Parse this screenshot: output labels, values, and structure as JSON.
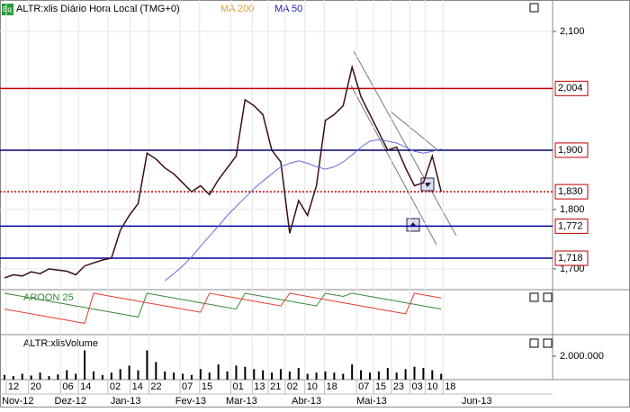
{
  "chart_data": {
    "type": "line",
    "title": "ALTR:xlis Diário Hora Local (TMG+0)",
    "indicator_labels": [
      "MA 200",
      "MA 50"
    ],
    "xlim": [
      -0.5,
      61.5
    ],
    "xticks": [
      {
        "value": 0.2,
        "label": "12"
      },
      {
        "value": 2.7,
        "label": "20"
      },
      {
        "value": 6.3,
        "label": "06"
      },
      {
        "value": 8.3,
        "label": "14"
      },
      {
        "value": 11.6,
        "label": "02"
      },
      {
        "value": 14.1,
        "label": "14"
      },
      {
        "value": 16.2,
        "label": "22"
      },
      {
        "value": 19.7,
        "label": "07"
      },
      {
        "value": 21.9,
        "label": "15"
      },
      {
        "value": 25.4,
        "label": "01"
      },
      {
        "value": 27.8,
        "label": "13"
      },
      {
        "value": 29.6,
        "label": "21"
      },
      {
        "value": 31.5,
        "label": "02"
      },
      {
        "value": 33.7,
        "label": "10"
      },
      {
        "value": 35.9,
        "label": "18"
      },
      {
        "value": 39.5,
        "label": "07"
      },
      {
        "value": 41.4,
        "label": "15"
      },
      {
        "value": 43.4,
        "label": "23"
      },
      {
        "value": 45.5,
        "label": "03"
      },
      {
        "value": 47.2,
        "label": "10"
      },
      {
        "value": 49.2,
        "label": "18"
      }
    ],
    "month_ticks": [
      {
        "value": 1.5,
        "label": "Nov-12"
      },
      {
        "value": 7.4,
        "label": "Dez-12"
      },
      {
        "value": 13.6,
        "label": "Jan-13"
      },
      {
        "value": 20.9,
        "label": "Fev-13"
      },
      {
        "value": 26.6,
        "label": "Mar-13"
      },
      {
        "value": 33.9,
        "label": "Abr-13"
      },
      {
        "value": 41.2,
        "label": "Mai-13"
      },
      {
        "value": 53.0,
        "label": "Jun-13"
      }
    ],
    "ylim": [
      1665,
      2153
    ],
    "yticks": [
      {
        "value": 2100,
        "label": "2,100"
      },
      {
        "value": 1800,
        "label": "1,800"
      },
      {
        "value": 1700,
        "label": "1,700"
      }
    ],
    "series": [
      {
        "name": "ALTR:xlis",
        "color": "#3a1010",
        "values": [
          1685,
          1690,
          1688,
          1695,
          1692,
          1700,
          1698,
          1696,
          1690,
          1705,
          1710,
          1715,
          1718,
          1765,
          1790,
          1810,
          1895,
          1885,
          1870,
          1860,
          1845,
          1830,
          1840,
          1825,
          1850,
          1870,
          1890,
          1985,
          1975,
          1960,
          1900,
          1880,
          1760,
          1815,
          1790,
          1840,
          1950,
          1960,
          1975,
          2040,
          1990,
          1960,
          1930,
          1900,
          1905,
          1870,
          1840,
          1845,
          1890,
          1830
        ]
      },
      {
        "name": "MA 50",
        "color": "#6a6ae0",
        "values": [
          null,
          null,
          null,
          null,
          null,
          null,
          null,
          null,
          null,
          null,
          null,
          null,
          null,
          null,
          null,
          null,
          null,
          null,
          1680,
          1692,
          1705,
          1720,
          1738,
          1755,
          1772,
          1790,
          1805,
          1820,
          1835,
          1848,
          1860,
          1872,
          1878,
          1882,
          1878,
          1872,
          1868,
          1872,
          1880,
          1892,
          1905,
          1915,
          1918,
          1915,
          1912,
          1905,
          1898,
          1895,
          1898,
          1902
        ]
      }
    ],
    "levels": [
      {
        "value": 2004,
        "label": "2,004",
        "color": "#c00000",
        "style": "solid"
      },
      {
        "value": 1900,
        "label": "1,900",
        "color": "#000070",
        "style": "solid"
      },
      {
        "value": 1830,
        "label": "1,830",
        "color": "#c00000",
        "style": "dotted"
      },
      {
        "value": 1772,
        "label": "1,772",
        "color": "#0000a0",
        "style": "solid"
      },
      {
        "value": 1718,
        "label": "1,718",
        "color": "#0000a0",
        "style": "solid"
      }
    ],
    "aroon": {
      "title": "AROON 25",
      "ylim": [
        0,
        100
      ],
      "series": [
        {
          "color": "#3a8a3a",
          "values": [
            100,
            96,
            92,
            88,
            84,
            80,
            76,
            72,
            68,
            64,
            60,
            56,
            52,
            48,
            44,
            40,
            100,
            96,
            92,
            88,
            84,
            80,
            76,
            72,
            68,
            64,
            60,
            100,
            96,
            92,
            88,
            84,
            80,
            76,
            72,
            68,
            100,
            96,
            92,
            100,
            96,
            92,
            88,
            84,
            80,
            76,
            72,
            68,
            64,
            60
          ]
        },
        {
          "color": "#e04030",
          "values": [
            60,
            56,
            52,
            48,
            44,
            40,
            36,
            32,
            28,
            24,
            100,
            96,
            92,
            88,
            84,
            80,
            76,
            72,
            68,
            64,
            60,
            56,
            52,
            100,
            96,
            92,
            88,
            84,
            80,
            76,
            72,
            68,
            100,
            96,
            92,
            88,
            84,
            80,
            76,
            72,
            68,
            64,
            60,
            56,
            52,
            48,
            100,
            96,
            92,
            88
          ]
        }
      ]
    },
    "volume": {
      "title": "ALTR:xlisVolume",
      "color": "#000000",
      "ylim": [
        0,
        3770000
      ],
      "yticks": [
        {
          "value": 2000000,
          "label": "2.000.000"
        }
      ],
      "values": [
        400000,
        300000,
        500000,
        350000,
        600000,
        300000,
        450000,
        800000,
        500000,
        2500000,
        700000,
        400000,
        600000,
        900000,
        1200000,
        800000,
        2500000,
        1500000,
        700000,
        600000,
        500000,
        400000,
        900000,
        600000,
        1300000,
        700000,
        1200000,
        1100000,
        900000,
        800000,
        600000,
        900000,
        700000,
        1000000,
        500000,
        600000,
        700000,
        600000,
        500000,
        1300000,
        800000,
        600000,
        700000,
        1000000,
        600000,
        900000,
        1100000,
        1000000,
        800000,
        500000
      ]
    }
  }
}
